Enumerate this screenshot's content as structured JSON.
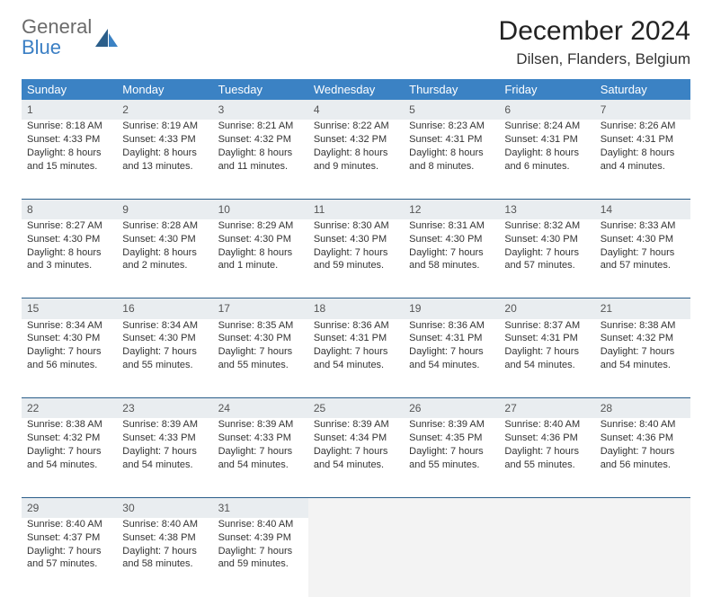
{
  "logo": {
    "word1": "General",
    "word2": "Blue"
  },
  "title": "December 2024",
  "location": "Dilsen, Flanders, Belgium",
  "colors": {
    "header_bg": "#3b82c4",
    "header_text": "#ffffff",
    "daynum_bg": "#e9edf0",
    "row_divider": "#2b5e8a",
    "logo_gray": "#6b6b6b",
    "logo_blue": "#3b7fc4"
  },
  "weekdays": [
    "Sunday",
    "Monday",
    "Tuesday",
    "Wednesday",
    "Thursday",
    "Friday",
    "Saturday"
  ],
  "weeks": [
    [
      {
        "n": "1",
        "sunrise": "Sunrise: 8:18 AM",
        "sunset": "Sunset: 4:33 PM",
        "daylight": "Daylight: 8 hours and 15 minutes."
      },
      {
        "n": "2",
        "sunrise": "Sunrise: 8:19 AM",
        "sunset": "Sunset: 4:33 PM",
        "daylight": "Daylight: 8 hours and 13 minutes."
      },
      {
        "n": "3",
        "sunrise": "Sunrise: 8:21 AM",
        "sunset": "Sunset: 4:32 PM",
        "daylight": "Daylight: 8 hours and 11 minutes."
      },
      {
        "n": "4",
        "sunrise": "Sunrise: 8:22 AM",
        "sunset": "Sunset: 4:32 PM",
        "daylight": "Daylight: 8 hours and 9 minutes."
      },
      {
        "n": "5",
        "sunrise": "Sunrise: 8:23 AM",
        "sunset": "Sunset: 4:31 PM",
        "daylight": "Daylight: 8 hours and 8 minutes."
      },
      {
        "n": "6",
        "sunrise": "Sunrise: 8:24 AM",
        "sunset": "Sunset: 4:31 PM",
        "daylight": "Daylight: 8 hours and 6 minutes."
      },
      {
        "n": "7",
        "sunrise": "Sunrise: 8:26 AM",
        "sunset": "Sunset: 4:31 PM",
        "daylight": "Daylight: 8 hours and 4 minutes."
      }
    ],
    [
      {
        "n": "8",
        "sunrise": "Sunrise: 8:27 AM",
        "sunset": "Sunset: 4:30 PM",
        "daylight": "Daylight: 8 hours and 3 minutes."
      },
      {
        "n": "9",
        "sunrise": "Sunrise: 8:28 AM",
        "sunset": "Sunset: 4:30 PM",
        "daylight": "Daylight: 8 hours and 2 minutes."
      },
      {
        "n": "10",
        "sunrise": "Sunrise: 8:29 AM",
        "sunset": "Sunset: 4:30 PM",
        "daylight": "Daylight: 8 hours and 1 minute."
      },
      {
        "n": "11",
        "sunrise": "Sunrise: 8:30 AM",
        "sunset": "Sunset: 4:30 PM",
        "daylight": "Daylight: 7 hours and 59 minutes."
      },
      {
        "n": "12",
        "sunrise": "Sunrise: 8:31 AM",
        "sunset": "Sunset: 4:30 PM",
        "daylight": "Daylight: 7 hours and 58 minutes."
      },
      {
        "n": "13",
        "sunrise": "Sunrise: 8:32 AM",
        "sunset": "Sunset: 4:30 PM",
        "daylight": "Daylight: 7 hours and 57 minutes."
      },
      {
        "n": "14",
        "sunrise": "Sunrise: 8:33 AM",
        "sunset": "Sunset: 4:30 PM",
        "daylight": "Daylight: 7 hours and 57 minutes."
      }
    ],
    [
      {
        "n": "15",
        "sunrise": "Sunrise: 8:34 AM",
        "sunset": "Sunset: 4:30 PM",
        "daylight": "Daylight: 7 hours and 56 minutes."
      },
      {
        "n": "16",
        "sunrise": "Sunrise: 8:34 AM",
        "sunset": "Sunset: 4:30 PM",
        "daylight": "Daylight: 7 hours and 55 minutes."
      },
      {
        "n": "17",
        "sunrise": "Sunrise: 8:35 AM",
        "sunset": "Sunset: 4:30 PM",
        "daylight": "Daylight: 7 hours and 55 minutes."
      },
      {
        "n": "18",
        "sunrise": "Sunrise: 8:36 AM",
        "sunset": "Sunset: 4:31 PM",
        "daylight": "Daylight: 7 hours and 54 minutes."
      },
      {
        "n": "19",
        "sunrise": "Sunrise: 8:36 AM",
        "sunset": "Sunset: 4:31 PM",
        "daylight": "Daylight: 7 hours and 54 minutes."
      },
      {
        "n": "20",
        "sunrise": "Sunrise: 8:37 AM",
        "sunset": "Sunset: 4:31 PM",
        "daylight": "Daylight: 7 hours and 54 minutes."
      },
      {
        "n": "21",
        "sunrise": "Sunrise: 8:38 AM",
        "sunset": "Sunset: 4:32 PM",
        "daylight": "Daylight: 7 hours and 54 minutes."
      }
    ],
    [
      {
        "n": "22",
        "sunrise": "Sunrise: 8:38 AM",
        "sunset": "Sunset: 4:32 PM",
        "daylight": "Daylight: 7 hours and 54 minutes."
      },
      {
        "n": "23",
        "sunrise": "Sunrise: 8:39 AM",
        "sunset": "Sunset: 4:33 PM",
        "daylight": "Daylight: 7 hours and 54 minutes."
      },
      {
        "n": "24",
        "sunrise": "Sunrise: 8:39 AM",
        "sunset": "Sunset: 4:33 PM",
        "daylight": "Daylight: 7 hours and 54 minutes."
      },
      {
        "n": "25",
        "sunrise": "Sunrise: 8:39 AM",
        "sunset": "Sunset: 4:34 PM",
        "daylight": "Daylight: 7 hours and 54 minutes."
      },
      {
        "n": "26",
        "sunrise": "Sunrise: 8:39 AM",
        "sunset": "Sunset: 4:35 PM",
        "daylight": "Daylight: 7 hours and 55 minutes."
      },
      {
        "n": "27",
        "sunrise": "Sunrise: 8:40 AM",
        "sunset": "Sunset: 4:36 PM",
        "daylight": "Daylight: 7 hours and 55 minutes."
      },
      {
        "n": "28",
        "sunrise": "Sunrise: 8:40 AM",
        "sunset": "Sunset: 4:36 PM",
        "daylight": "Daylight: 7 hours and 56 minutes."
      }
    ],
    [
      {
        "n": "29",
        "sunrise": "Sunrise: 8:40 AM",
        "sunset": "Sunset: 4:37 PM",
        "daylight": "Daylight: 7 hours and 57 minutes."
      },
      {
        "n": "30",
        "sunrise": "Sunrise: 8:40 AM",
        "sunset": "Sunset: 4:38 PM",
        "daylight": "Daylight: 7 hours and 58 minutes."
      },
      {
        "n": "31",
        "sunrise": "Sunrise: 8:40 AM",
        "sunset": "Sunset: 4:39 PM",
        "daylight": "Daylight: 7 hours and 59 minutes."
      },
      null,
      null,
      null,
      null
    ]
  ]
}
